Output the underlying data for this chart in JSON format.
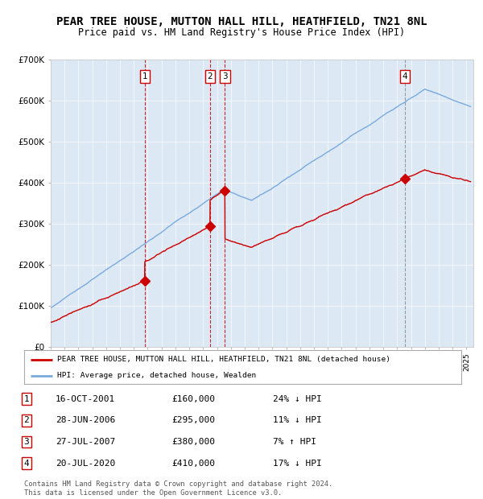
{
  "title": "PEAR TREE HOUSE, MUTTON HALL HILL, HEATHFIELD, TN21 8NL",
  "subtitle": "Price paid vs. HM Land Registry's House Price Index (HPI)",
  "title_fontsize": 10,
  "subtitle_fontsize": 8.5,
  "background_color": "#dce9f5",
  "plot_bg_color": "#dce9f5",
  "line1_color": "#cc0000",
  "line2_color": "#7aaadd",
  "ylim": [
    0,
    700000
  ],
  "yticks": [
    0,
    100000,
    200000,
    300000,
    400000,
    500000,
    600000,
    700000
  ],
  "ytick_labels": [
    "£0",
    "£100K",
    "£200K",
    "£300K",
    "£400K",
    "£500K",
    "£600K",
    "£700K"
  ],
  "sale_dates": [
    2001.79,
    2006.49,
    2007.57,
    2020.55
  ],
  "sale_prices": [
    160000,
    295000,
    380000,
    410000
  ],
  "sale_labels": [
    "1",
    "2",
    "3",
    "4"
  ],
  "legend_line1": "PEAR TREE HOUSE, MUTTON HALL HILL, HEATHFIELD, TN21 8NL (detached house)",
  "legend_line2": "HPI: Average price, detached house, Wealden",
  "table_rows": [
    [
      "1",
      "16-OCT-2001",
      "£160,000",
      "24% ↓ HPI"
    ],
    [
      "2",
      "28-JUN-2006",
      "£295,000",
      "11% ↓ HPI"
    ],
    [
      "3",
      "27-JUL-2007",
      "£380,000",
      "7% ↑ HPI"
    ],
    [
      "4",
      "20-JUL-2020",
      "£410,000",
      "17% ↓ HPI"
    ]
  ],
  "footer": "Contains HM Land Registry data © Crown copyright and database right 2024.\nThis data is licensed under the Open Government Licence v3.0.",
  "xmin": 1995.0,
  "xmax": 2025.5
}
